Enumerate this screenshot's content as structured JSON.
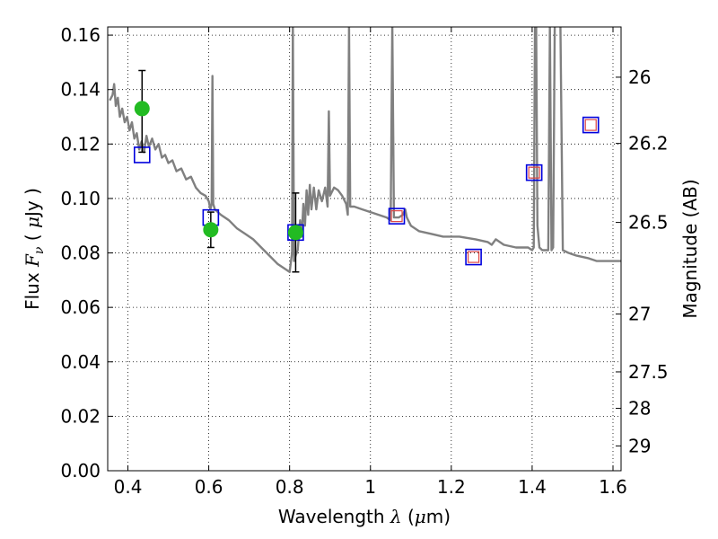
{
  "chart_data": {
    "type": "scatter",
    "xlim": [
      0.35,
      1.62
    ],
    "ylim": [
      0.0,
      0.163
    ],
    "grid": true,
    "xlabel": {
      "pre": "Wavelength  ",
      "sym": "λ",
      "post": " (",
      "mu": "μ",
      "unit": "m)"
    },
    "ylabel": {
      "pre": "Flux  ",
      "sym": "F",
      "sub": "ν",
      "post": "  ( ",
      "mu": "μ",
      "unit": "Jy )"
    },
    "y2label": "Magnitude (AB)",
    "xticks": [
      {
        "v": 0.4,
        "t": "0.4"
      },
      {
        "v": 0.6,
        "t": "0.6"
      },
      {
        "v": 0.8,
        "t": "0.8"
      },
      {
        "v": 1.0,
        "t": "1"
      },
      {
        "v": 1.2,
        "t": "1.2"
      },
      {
        "v": 1.4,
        "t": "1.4"
      },
      {
        "v": 1.6,
        "t": "1.6"
      }
    ],
    "yticks": [
      {
        "v": 0.0,
        "t": "0.00"
      },
      {
        "v": 0.02,
        "t": "0.02"
      },
      {
        "v": 0.04,
        "t": "0.04"
      },
      {
        "v": 0.06,
        "t": "0.06"
      },
      {
        "v": 0.08,
        "t": "0.08"
      },
      {
        "v": 0.1,
        "t": "0.10"
      },
      {
        "v": 0.12,
        "t": "0.12"
      },
      {
        "v": 0.14,
        "t": "0.14"
      },
      {
        "v": 0.16,
        "t": "0.16"
      }
    ],
    "y2ticks": [
      {
        "v": 26,
        "t": "26"
      },
      {
        "v": 26.2,
        "t": "26.2"
      },
      {
        "v": 26.5,
        "t": "26.5"
      },
      {
        "v": 27,
        "t": "27"
      },
      {
        "v": 27.5,
        "t": "27.5"
      },
      {
        "v": 28,
        "t": "28"
      },
      {
        "v": 29,
        "t": "29"
      }
    ],
    "sed_model": {
      "color": "#808080",
      "points": [
        [
          0.355,
          0.136
        ],
        [
          0.362,
          0.138
        ],
        [
          0.366,
          0.142
        ],
        [
          0.37,
          0.134
        ],
        [
          0.375,
          0.137
        ],
        [
          0.38,
          0.13
        ],
        [
          0.386,
          0.133
        ],
        [
          0.392,
          0.128
        ],
        [
          0.398,
          0.13
        ],
        [
          0.404,
          0.125
        ],
        [
          0.41,
          0.128
        ],
        [
          0.416,
          0.122
        ],
        [
          0.422,
          0.124
        ],
        [
          0.428,
          0.118
        ],
        [
          0.434,
          0.121
        ],
        [
          0.44,
          0.117
        ],
        [
          0.446,
          0.123
        ],
        [
          0.452,
          0.119
        ],
        [
          0.46,
          0.122
        ],
        [
          0.468,
          0.118
        ],
        [
          0.476,
          0.12
        ],
        [
          0.484,
          0.115
        ],
        [
          0.492,
          0.116
        ],
        [
          0.5,
          0.113
        ],
        [
          0.51,
          0.114
        ],
        [
          0.52,
          0.11
        ],
        [
          0.532,
          0.111
        ],
        [
          0.544,
          0.107
        ],
        [
          0.556,
          0.108
        ],
        [
          0.568,
          0.104
        ],
        [
          0.58,
          0.102
        ],
        [
          0.592,
          0.101
        ],
        [
          0.6,
          0.099
        ],
        [
          0.604,
          0.096
        ],
        [
          0.607,
          0.098
        ],
        [
          0.609,
          0.145
        ],
        [
          0.611,
          0.098
        ],
        [
          0.615,
          0.096
        ],
        [
          0.63,
          0.094
        ],
        [
          0.65,
          0.092
        ],
        [
          0.67,
          0.089
        ],
        [
          0.69,
          0.087
        ],
        [
          0.71,
          0.085
        ],
        [
          0.73,
          0.082
        ],
        [
          0.75,
          0.079
        ],
        [
          0.77,
          0.076
        ],
        [
          0.79,
          0.074
        ],
        [
          0.8,
          0.073
        ],
        [
          0.806,
          0.08
        ],
        [
          0.808,
          0.164
        ],
        [
          0.811,
          0.077
        ],
        [
          0.815,
          0.079
        ],
        [
          0.82,
          0.081
        ],
        [
          0.826,
          0.092
        ],
        [
          0.83,
          0.086
        ],
        [
          0.834,
          0.098
        ],
        [
          0.838,
          0.09
        ],
        [
          0.842,
          0.103
        ],
        [
          0.846,
          0.094
        ],
        [
          0.85,
          0.105
        ],
        [
          0.854,
          0.096
        ],
        [
          0.86,
          0.104
        ],
        [
          0.866,
          0.096
        ],
        [
          0.872,
          0.103
        ],
        [
          0.88,
          0.099
        ],
        [
          0.888,
          0.104
        ],
        [
          0.894,
          0.097
        ],
        [
          0.897,
          0.132
        ],
        [
          0.9,
          0.101
        ],
        [
          0.91,
          0.104
        ],
        [
          0.92,
          0.103
        ],
        [
          0.93,
          0.101
        ],
        [
          0.94,
          0.098
        ],
        [
          0.944,
          0.094
        ],
        [
          0.947,
          0.164
        ],
        [
          0.95,
          0.097
        ],
        [
          0.96,
          0.097
        ],
        [
          0.98,
          0.096
        ],
        [
          1.0,
          0.095
        ],
        [
          1.02,
          0.094
        ],
        [
          1.04,
          0.093
        ],
        [
          1.05,
          0.092
        ],
        [
          1.054,
          0.164
        ],
        [
          1.058,
          0.093
        ],
        [
          1.07,
          0.093
        ],
        [
          1.08,
          0.094
        ],
        [
          1.086,
          0.096
        ],
        [
          1.09,
          0.093
        ],
        [
          1.1,
          0.09
        ],
        [
          1.12,
          0.088
        ],
        [
          1.15,
          0.087
        ],
        [
          1.18,
          0.086
        ],
        [
          1.22,
          0.086
        ],
        [
          1.26,
          0.085
        ],
        [
          1.29,
          0.084
        ],
        [
          1.3,
          0.083
        ],
        [
          1.31,
          0.085
        ],
        [
          1.33,
          0.083
        ],
        [
          1.36,
          0.082
        ],
        [
          1.39,
          0.082
        ],
        [
          1.4,
          0.081
        ],
        [
          1.404,
          0.082
        ],
        [
          1.407,
          0.164
        ],
        [
          1.41,
          0.164
        ],
        [
          1.413,
          0.09
        ],
        [
          1.418,
          0.082
        ],
        [
          1.425,
          0.081
        ],
        [
          1.44,
          0.081
        ],
        [
          1.444,
          0.164
        ],
        [
          1.448,
          0.081
        ],
        [
          1.452,
          0.082
        ],
        [
          1.456,
          0.164
        ],
        [
          1.47,
          0.164
        ],
        [
          1.476,
          0.081
        ],
        [
          1.49,
          0.08
        ],
        [
          1.51,
          0.079
        ],
        [
          1.54,
          0.078
        ],
        [
          1.56,
          0.077
        ],
        [
          1.58,
          0.077
        ],
        [
          1.6,
          0.077
        ],
        [
          1.62,
          0.077
        ]
      ]
    },
    "observed": {
      "color": "#22bb22",
      "points": [
        {
          "x": 0.435,
          "y": 0.133,
          "ylo": 0.117,
          "yhi": 0.147
        },
        {
          "x": 0.605,
          "y": 0.0885,
          "ylo": 0.082,
          "yhi": 0.095
        },
        {
          "x": 0.815,
          "y": 0.0875,
          "ylo": 0.073,
          "yhi": 0.102
        }
      ]
    },
    "model_squares": {
      "outer_color": "#0000dd",
      "inner_color": "#dd4444",
      "points": [
        {
          "x": 0.435,
          "y": 0.116,
          "inner": false
        },
        {
          "x": 0.605,
          "y": 0.093,
          "inner": false
        },
        {
          "x": 0.815,
          "y": 0.0875,
          "inner": false
        },
        {
          "x": 1.065,
          "y": 0.0935,
          "inner": true
        },
        {
          "x": 1.255,
          "y": 0.0785,
          "inner": true
        },
        {
          "x": 1.405,
          "y": 0.1095,
          "inner": true
        },
        {
          "x": 1.545,
          "y": 0.127,
          "inner": true
        }
      ]
    }
  }
}
